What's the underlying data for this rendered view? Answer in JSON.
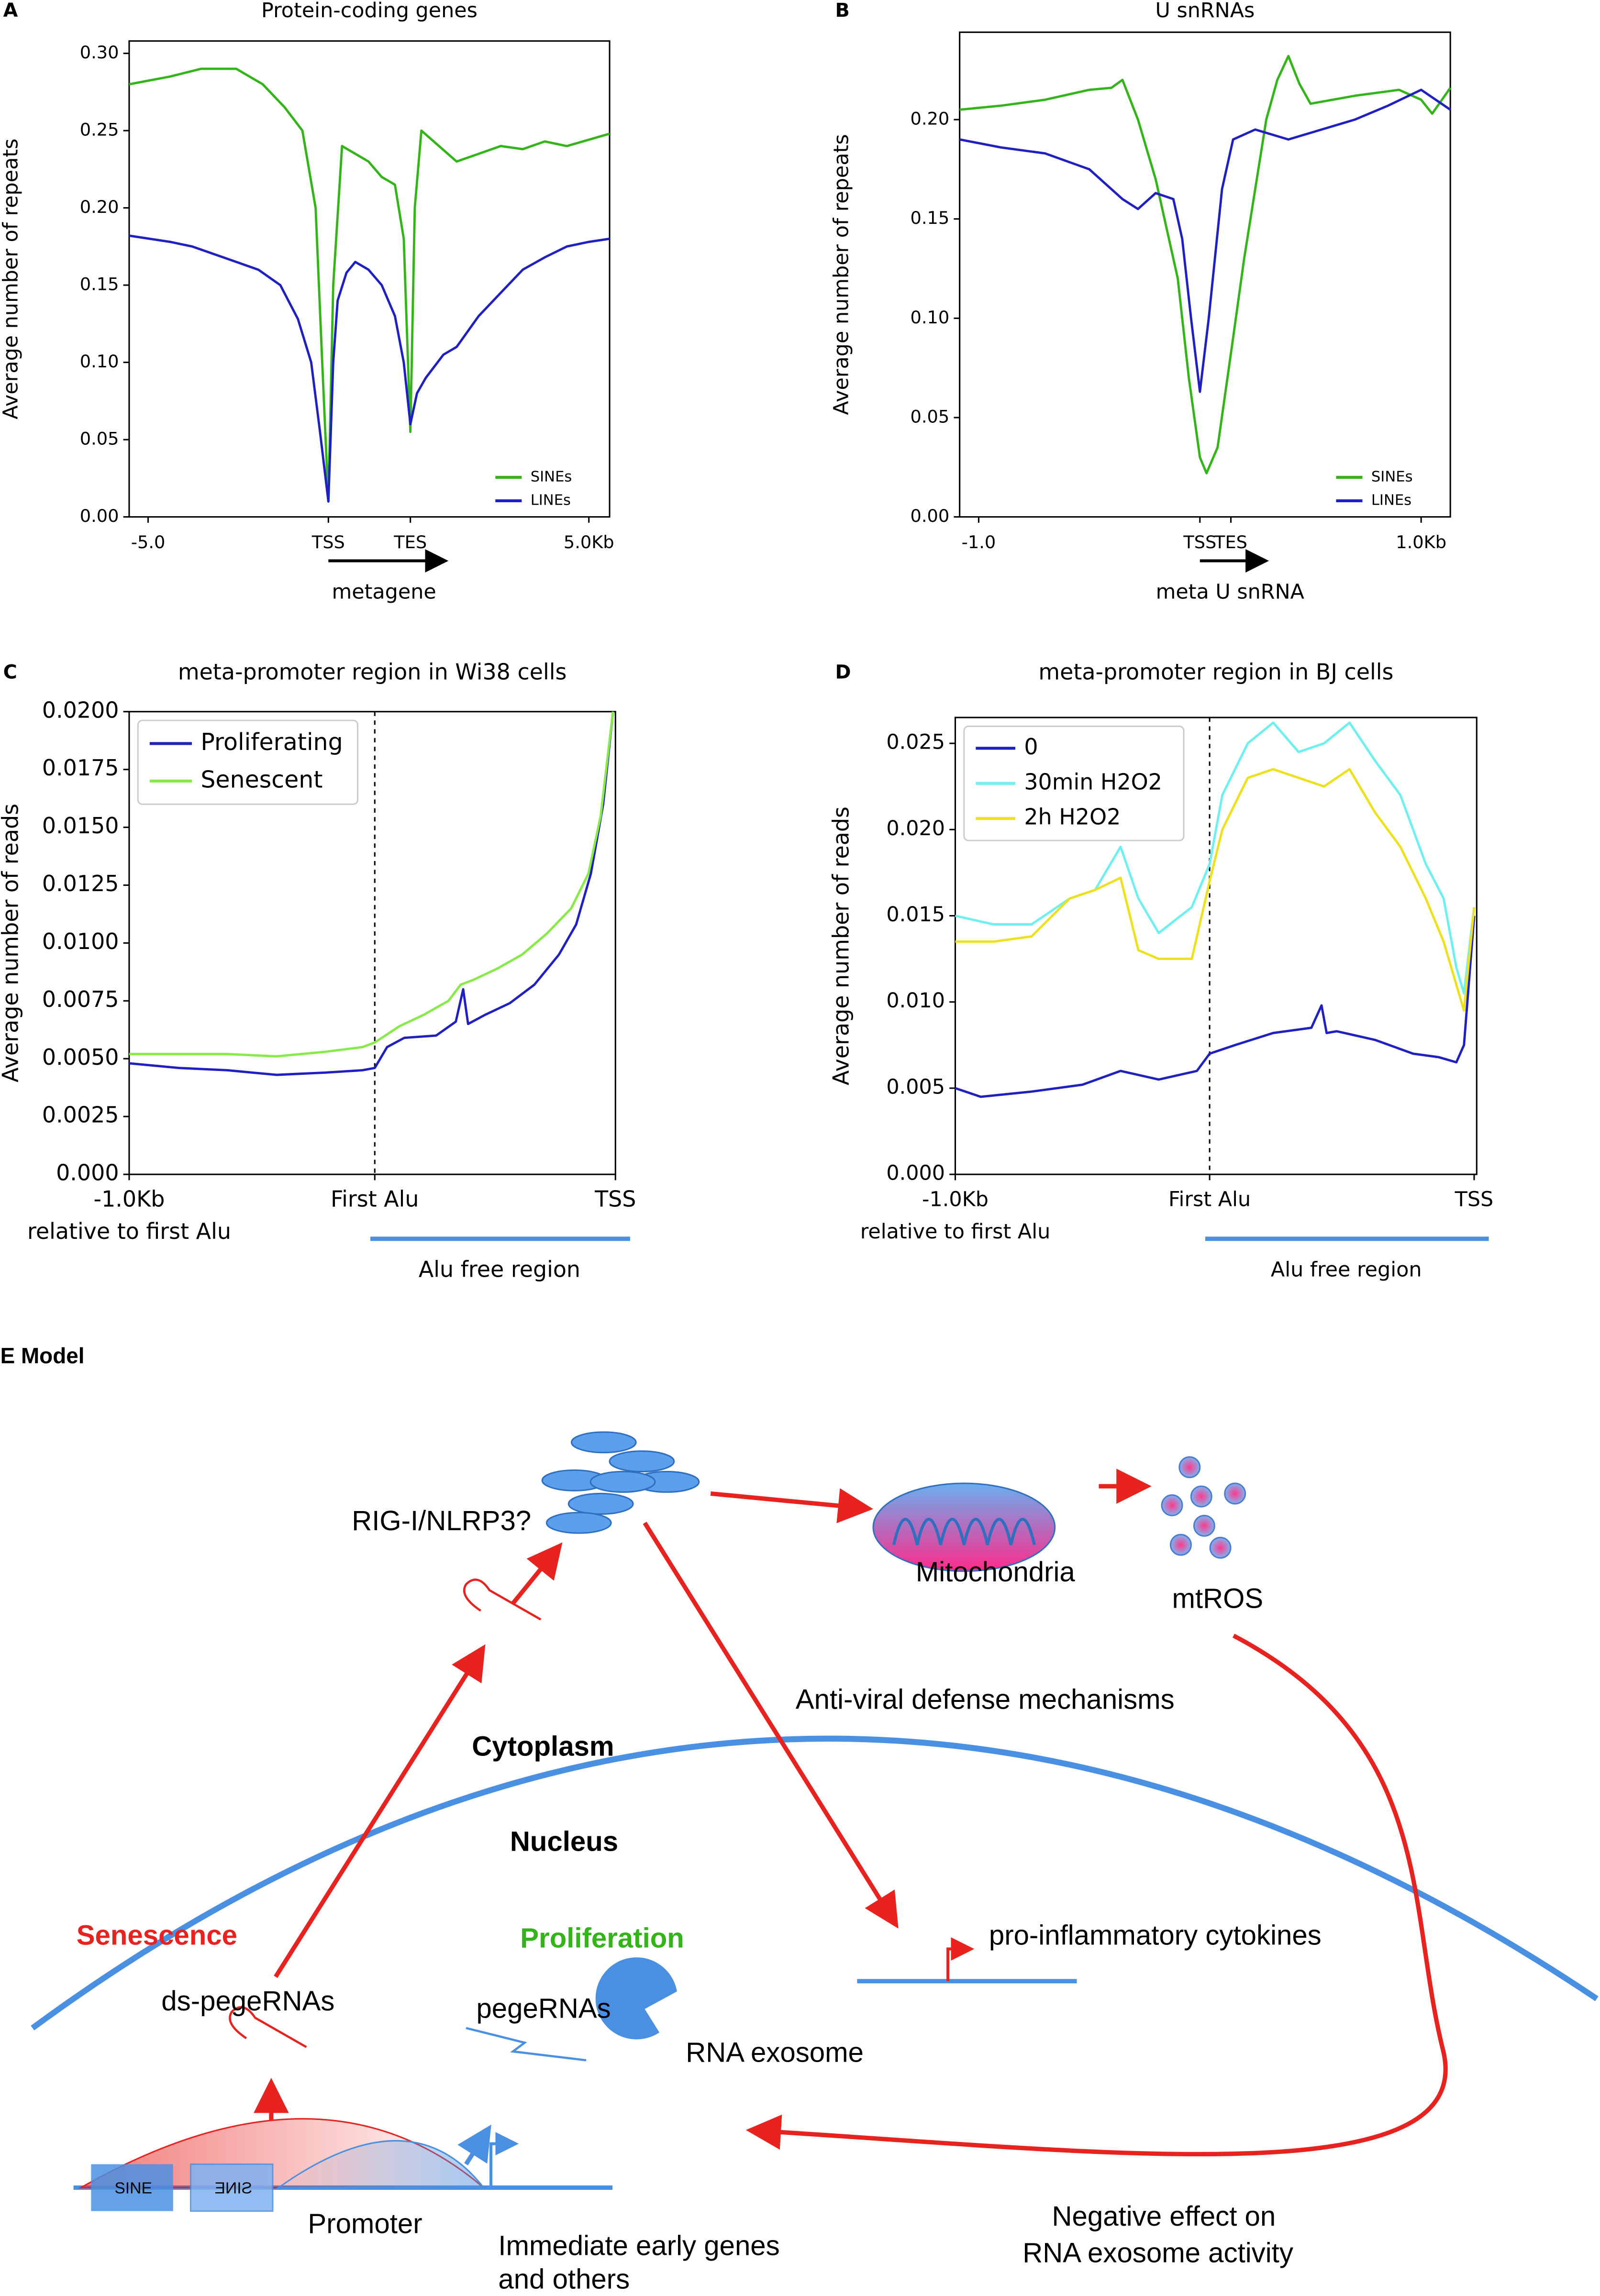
{
  "chart_data": [
    {
      "type": "line",
      "panel": "A",
      "title": "Protein-coding genes",
      "xlabel": "metagene",
      "ylabel": "Average number of repeats",
      "xlim": [
        -5.43,
        5.47
      ],
      "ylim": [
        0,
        0.308
      ],
      "legend": "lower right",
      "xticks": [
        {
          "value": -5,
          "label": "-5.0"
        },
        {
          "value": -0.91,
          "label": "TSS"
        },
        {
          "value": 0.95,
          "label": "TES"
        },
        {
          "value": 5,
          "label": "5.0Kb"
        }
      ],
      "yticks": [
        {
          "value": 0,
          "label": "0.00"
        },
        0.05,
        {
          "value": 0.1,
          "label": "0.10"
        },
        0.15,
        {
          "value": 0.2,
          "label": "0.20"
        },
        0.25,
        {
          "value": 0.3,
          "label": "0.30"
        }
      ],
      "series": [
        {
          "name": "SINEs",
          "color": "#33b51a",
          "x": [
            -5.43,
            -4.5,
            -3.8,
            -3,
            -2.4,
            -1.9,
            -1.5,
            -1.2,
            -1.05,
            -0.91,
            -0.8,
            -0.6,
            -0.3,
            0,
            0.3,
            0.6,
            0.8,
            0.95,
            1.05,
            1.2,
            1.6,
            2,
            2.5,
            3,
            3.5,
            4,
            4.5,
            5.47
          ],
          "values": [
            0.28,
            0.285,
            0.29,
            0.29,
            0.28,
            0.265,
            0.25,
            0.2,
            0.1,
            0.01,
            0.15,
            0.24,
            0.235,
            0.23,
            0.22,
            0.215,
            0.18,
            0.055,
            0.2,
            0.25,
            0.24,
            0.23,
            0.235,
            0.24,
            0.238,
            0.243,
            0.24,
            0.248
          ]
        },
        {
          "name": "LINEs",
          "color": "#1f1fc2",
          "x": [
            -5.43,
            -4.5,
            -4,
            -3,
            -2.5,
            -2,
            -1.6,
            -1.3,
            -1.1,
            -0.91,
            -0.8,
            -0.7,
            -0.5,
            -0.3,
            0,
            0.3,
            0.6,
            0.8,
            0.95,
            1.1,
            1.3,
            1.7,
            2,
            2.5,
            3,
            3.5,
            4,
            4.5,
            5,
            5.47
          ],
          "values": [
            0.182,
            0.178,
            0.175,
            0.165,
            0.16,
            0.15,
            0.128,
            0.1,
            0.055,
            0.01,
            0.1,
            0.14,
            0.158,
            0.165,
            0.16,
            0.15,
            0.13,
            0.1,
            0.06,
            0.08,
            0.09,
            0.105,
            0.11,
            0.13,
            0.145,
            0.16,
            0.168,
            0.175,
            0.178,
            0.18
          ]
        }
      ]
    },
    {
      "type": "line",
      "panel": "B",
      "title": "U snRNAs",
      "xlabel": "meta U snRNA",
      "ylabel": "Average number of repeats",
      "xlim": [
        -1.086,
        1.132
      ],
      "ylim": [
        0,
        0.244
      ],
      "legend": "lower right",
      "xticks": [
        {
          "value": -1,
          "label": "-1.0"
        },
        {
          "value": 0,
          "label": "TSS"
        },
        {
          "value": 0.14,
          "label": "TES"
        },
        {
          "value": 1,
          "label": "1.0Kb"
        }
      ],
      "yticks": [
        {
          "value": 0,
          "label": "0.00"
        },
        0.05,
        {
          "value": 0.1,
          "label": "0.10"
        },
        0.15,
        {
          "value": 0.2,
          "label": "0.20"
        }
      ],
      "series": [
        {
          "name": "SINEs",
          "color": "#33b51a",
          "x": [
            -1.086,
            -0.9,
            -0.7,
            -0.5,
            -0.4,
            -0.35,
            -0.28,
            -0.2,
            -0.1,
            -0.05,
            0,
            0.03,
            0.08,
            0.15,
            0.2,
            0.3,
            0.35,
            0.4,
            0.45,
            0.5,
            0.7,
            0.9,
            1.0,
            1.05,
            1.132
          ],
          "values": [
            0.205,
            0.207,
            0.21,
            0.215,
            0.216,
            0.22,
            0.2,
            0.17,
            0.12,
            0.07,
            0.03,
            0.022,
            0.035,
            0.09,
            0.13,
            0.2,
            0.22,
            0.232,
            0.218,
            0.208,
            0.212,
            0.215,
            0.21,
            0.203,
            0.216
          ]
        },
        {
          "name": "LINEs",
          "color": "#1f1fc2",
          "x": [
            -1.086,
            -0.9,
            -0.7,
            -0.5,
            -0.35,
            -0.28,
            -0.2,
            -0.12,
            -0.08,
            -0.04,
            0,
            0.04,
            0.1,
            0.15,
            0.25,
            0.4,
            0.55,
            0.7,
            0.85,
            1.0,
            1.132
          ],
          "values": [
            0.19,
            0.186,
            0.183,
            0.175,
            0.16,
            0.155,
            0.163,
            0.16,
            0.14,
            0.1,
            0.063,
            0.1,
            0.165,
            0.19,
            0.195,
            0.19,
            0.195,
            0.2,
            0.207,
            0.215,
            0.205
          ]
        }
      ]
    },
    {
      "type": "line",
      "panel": "C",
      "title": "meta-promoter region in Wi38 cells",
      "ylabel": "Average number of reads",
      "annotations": [
        "relative to first Alu",
        "Alu free region"
      ],
      "xlim": [
        0,
        1.98
      ],
      "ylim": [
        0,
        0.02
      ],
      "legend": "upper left",
      "xticks": [
        {
          "value": 0,
          "label": "-1.0Kb"
        },
        {
          "value": 1,
          "label": "First Alu"
        },
        {
          "value": 1.98,
          "label": "TSS"
        }
      ],
      "yticks": [
        {
          "value": 0,
          "label": "0.000"
        },
        0.0025,
        {
          "value": 0.005,
          "label": "0.0050"
        },
        0.0075,
        {
          "value": 0.01,
          "label": "0.0100"
        },
        0.0125,
        {
          "value": 0.015,
          "label": "0.0150"
        },
        0.0175,
        {
          "value": 0.02,
          "label": "0.0200"
        }
      ],
      "series": [
        {
          "name": "Proliferating",
          "color": "#1f1fc2",
          "x": [
            0,
            0.2,
            0.4,
            0.6,
            0.8,
            0.95,
            1.0,
            1.05,
            1.12,
            1.25,
            1.33,
            1.36,
            1.38,
            1.45,
            1.55,
            1.65,
            1.75,
            1.82,
            1.88,
            1.93,
            1.97
          ],
          "values": [
            0.0048,
            0.0046,
            0.0045,
            0.0043,
            0.0044,
            0.0045,
            0.0046,
            0.0055,
            0.0059,
            0.006,
            0.0066,
            0.008,
            0.0065,
            0.0069,
            0.0074,
            0.0082,
            0.0095,
            0.0108,
            0.013,
            0.016,
            0.02
          ]
        },
        {
          "name": "Senescent",
          "color": "#88ea48",
          "x": [
            0,
            0.2,
            0.4,
            0.6,
            0.8,
            0.95,
            1.0,
            1.1,
            1.2,
            1.3,
            1.35,
            1.4,
            1.5,
            1.6,
            1.7,
            1.8,
            1.87,
            1.92,
            1.97
          ],
          "values": [
            0.0052,
            0.0052,
            0.0052,
            0.0051,
            0.0053,
            0.0055,
            0.0057,
            0.0064,
            0.0069,
            0.0075,
            0.0082,
            0.0084,
            0.0089,
            0.0095,
            0.0104,
            0.0115,
            0.013,
            0.0155,
            0.02
          ]
        }
      ]
    },
    {
      "type": "line",
      "panel": "D",
      "title": "meta-promoter region in BJ cells",
      "ylabel": "Average number of reads",
      "annotations": [
        "relative to first Alu",
        "Alu free region"
      ],
      "xlim": [
        0,
        2.05
      ],
      "ylim": [
        0,
        0.0265
      ],
      "legend": "upper left",
      "xticks": [
        {
          "value": 0,
          "label": "-1.0Kb"
        },
        {
          "value": 1,
          "label": "First Alu"
        },
        {
          "value": 2.04,
          "label": "TSS"
        }
      ],
      "yticks": [
        {
          "value": 0,
          "label": "0.000"
        },
        0.005,
        {
          "value": 0.01,
          "label": "0.010"
        },
        0.015,
        {
          "value": 0.02,
          "label": "0.020"
        },
        0.025
      ],
      "series": [
        {
          "name": "0",
          "color": "#1f1fc2",
          "x": [
            0,
            0.1,
            0.3,
            0.5,
            0.65,
            0.8,
            0.95,
            1.0,
            1.1,
            1.25,
            1.4,
            1.44,
            1.46,
            1.5,
            1.65,
            1.8,
            1.9,
            1.97,
            2.0,
            2.04
          ],
          "values": [
            0.005,
            0.0045,
            0.0048,
            0.0052,
            0.006,
            0.0055,
            0.006,
            0.007,
            0.0075,
            0.0082,
            0.0085,
            0.0098,
            0.0082,
            0.0083,
            0.0078,
            0.007,
            0.0068,
            0.0065,
            0.0075,
            0.015
          ]
        },
        {
          "name": "30min H2O2",
          "color": "#6ef0f0",
          "x": [
            0,
            0.15,
            0.3,
            0.45,
            0.55,
            0.65,
            0.72,
            0.8,
            0.93,
            1.0,
            1.05,
            1.15,
            1.25,
            1.35,
            1.45,
            1.55,
            1.65,
            1.75,
            1.85,
            1.92,
            1.97,
            2.0,
            2.04
          ],
          "values": [
            0.015,
            0.0145,
            0.0145,
            0.016,
            0.0165,
            0.019,
            0.016,
            0.014,
            0.0155,
            0.018,
            0.022,
            0.025,
            0.0262,
            0.0245,
            0.025,
            0.0262,
            0.024,
            0.022,
            0.018,
            0.016,
            0.012,
            0.0105,
            0.0155
          ]
        },
        {
          "name": "2h H2O2",
          "color": "#ece11c",
          "x": [
            0,
            0.15,
            0.3,
            0.45,
            0.55,
            0.65,
            0.72,
            0.8,
            0.93,
            1.0,
            1.05,
            1.15,
            1.25,
            1.35,
            1.45,
            1.55,
            1.65,
            1.75,
            1.85,
            1.92,
            1.97,
            2.0,
            2.04
          ],
          "values": [
            0.0135,
            0.0135,
            0.0138,
            0.016,
            0.0165,
            0.0172,
            0.013,
            0.0125,
            0.0125,
            0.017,
            0.02,
            0.023,
            0.0235,
            0.023,
            0.0225,
            0.0235,
            0.021,
            0.019,
            0.016,
            0.0135,
            0.011,
            0.0095,
            0.0155
          ]
        }
      ]
    }
  ],
  "diagram": {
    "title": "E Model",
    "labels": [
      "RIG-I/NLRP3?",
      "Mitochondria",
      "mtROS",
      "Anti-viral defense mechanisms",
      "Cytoplasm",
      "Nucleus",
      "Senescence",
      "Proliferation",
      "pro-inflammatory cytokines",
      "ds-pegeRNAs",
      "pegeRNAs",
      "RNA exosome",
      "SINE",
      "SINE",
      "Promoter",
      "Immediate early genes",
      "and others",
      "Negative effect on",
      "RNA exosome activity"
    ]
  }
}
